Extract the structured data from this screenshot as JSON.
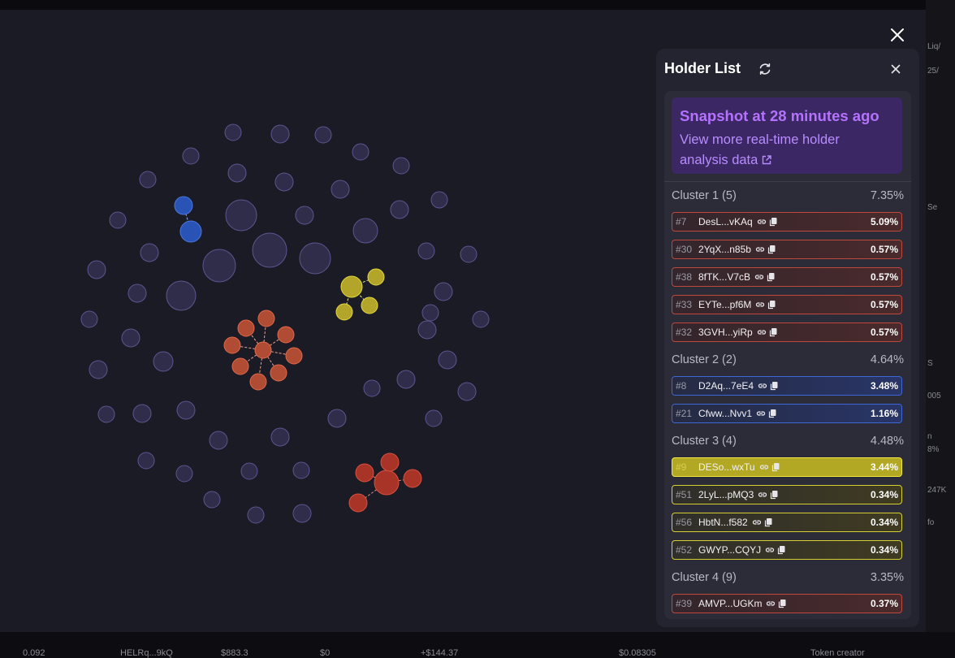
{
  "modal": {
    "close_icon": "close-icon"
  },
  "panel": {
    "title": "Holder List",
    "refresh_icon": "refresh-icon",
    "close_icon": "close-icon",
    "snapshot": {
      "title": "Snapshot at 28 minutes ago",
      "link_text": "View more real-time holder analysis data",
      "link_icon": "external-link-icon"
    },
    "clusters": [
      {
        "label": "Cluster 1 (5)",
        "percent": "7.35%",
        "color": "#c0483a",
        "holders": [
          {
            "rank": "#7",
            "address": "DesL...vKAq",
            "percent": "5.09%"
          },
          {
            "rank": "#30",
            "address": "2YqX...n85b",
            "percent": "0.57%"
          },
          {
            "rank": "#38",
            "address": "8fTK...V7cB",
            "percent": "0.57%"
          },
          {
            "rank": "#33",
            "address": "EYTe...pf6M",
            "percent": "0.57%"
          },
          {
            "rank": "#32",
            "address": "3GVH...yiRp",
            "percent": "0.57%"
          }
        ]
      },
      {
        "label": "Cluster 2 (2)",
        "percent": "4.64%",
        "color": "#3d66d8",
        "holders": [
          {
            "rank": "#8",
            "address": "D2Aq...7eE4",
            "percent": "3.48%"
          },
          {
            "rank": "#21",
            "address": "Cfww...Nvv1",
            "percent": "1.16%"
          }
        ]
      },
      {
        "label": "Cluster 3 (4)",
        "percent": "4.48%",
        "color": "#d6cf32",
        "holders": [
          {
            "rank": "#9",
            "address": "DESo...wxTu",
            "percent": "3.44%"
          },
          {
            "rank": "#51",
            "address": "2LyL...pMQ3",
            "percent": "0.34%"
          },
          {
            "rank": "#56",
            "address": "HbtN...f582",
            "percent": "0.34%"
          },
          {
            "rank": "#52",
            "address": "GWYP...CQYJ",
            "percent": "0.34%"
          }
        ]
      },
      {
        "label": "Cluster 4 (9)",
        "percent": "3.35%",
        "color": "#c0483a",
        "holders": [
          {
            "rank": "#39",
            "address": "AMVP...UGKm",
            "percent": "0.37%"
          }
        ]
      }
    ],
    "row_icons": [
      "link-icon",
      "copy-icon"
    ]
  },
  "background": {
    "right_fragments": [
      "Liq/",
      "25/",
      "Se",
      "S",
      "005",
      "n",
      "8%",
      "247K",
      "fo"
    ],
    "bottom_fragments": [
      "0.092",
      "HELRq...9kQ",
      "$883.3",
      "$0",
      "+$144.37",
      "$0.08305",
      "Token creator"
    ]
  },
  "colors": {
    "cluster_red": "#c0483a",
    "cluster_blue": "#3d66d8",
    "cluster_yellow": "#d6cf32",
    "snapshot_accent": "#b472ff",
    "node_default": "#302d4a"
  }
}
